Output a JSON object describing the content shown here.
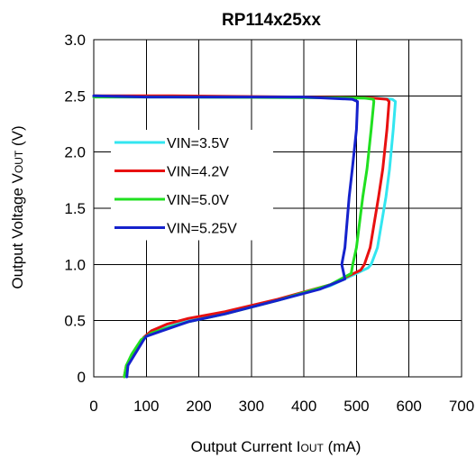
{
  "chart_data": {
    "type": "line",
    "title": "RP114x25xx",
    "xlabel": "Output Current I",
    "xlabel_sub": "OUT",
    "xlabel_unit": " (mA)",
    "ylabel": "Output Voltage V",
    "ylabel_sub": "OUT",
    "ylabel_unit": " (V)",
    "xlim": [
      0,
      700
    ],
    "ylim": [
      0,
      3.0
    ],
    "x_ticks": [
      "0",
      "100",
      "200",
      "300",
      "400",
      "500",
      "600",
      "700"
    ],
    "y_ticks": [
      "0",
      "0.5",
      "1.0",
      "1.5",
      "2.0",
      "2.5",
      "3.0"
    ],
    "grid": true,
    "legend_position": "left-middle",
    "series": [
      {
        "name": "VIN=3.5V",
        "color": "#33e6f0",
        "points": [
          [
            0,
            2.49
          ],
          [
            150,
            2.49
          ],
          [
            400,
            2.485
          ],
          [
            540,
            2.48
          ],
          [
            568,
            2.47
          ],
          [
            574,
            2.45
          ],
          [
            570,
            2.2
          ],
          [
            563,
            1.85
          ],
          [
            556,
            1.6
          ],
          [
            540,
            1.15
          ],
          [
            528,
            1.0
          ],
          [
            522,
            0.97
          ],
          [
            450,
            0.81
          ],
          [
            350,
            0.68
          ],
          [
            250,
            0.57
          ],
          [
            180,
            0.5
          ],
          [
            130,
            0.43
          ],
          [
            110,
            0.41
          ],
          [
            95,
            0.35
          ],
          [
            75,
            0.2
          ],
          [
            65,
            0.1
          ],
          [
            62,
            0.0
          ]
        ]
      },
      {
        "name": "VIN=4.2V",
        "color": "#e81010",
        "points": [
          [
            0,
            2.5
          ],
          [
            150,
            2.5
          ],
          [
            400,
            2.49
          ],
          [
            530,
            2.48
          ],
          [
            558,
            2.47
          ],
          [
            562,
            2.45
          ],
          [
            558,
            2.2
          ],
          [
            550,
            1.85
          ],
          [
            542,
            1.6
          ],
          [
            526,
            1.15
          ],
          [
            515,
            1.0
          ],
          [
            508,
            0.95
          ],
          [
            450,
            0.82
          ],
          [
            350,
            0.69
          ],
          [
            250,
            0.58
          ],
          [
            180,
            0.52
          ],
          [
            140,
            0.47
          ],
          [
            110,
            0.41
          ],
          [
            95,
            0.35
          ],
          [
            75,
            0.2
          ],
          [
            62,
            0.1
          ],
          [
            58,
            0.0
          ]
        ]
      },
      {
        "name": "VIN=5.0V",
        "color": "#20e020",
        "points": [
          [
            0,
            2.49
          ],
          [
            150,
            2.49
          ],
          [
            400,
            2.485
          ],
          [
            515,
            2.48
          ],
          [
            532,
            2.47
          ],
          [
            533,
            2.45
          ],
          [
            528,
            2.2
          ],
          [
            520,
            1.85
          ],
          [
            512,
            1.6
          ],
          [
            500,
            1.15
          ],
          [
            493,
            1.0
          ],
          [
            490,
            0.92
          ],
          [
            450,
            0.82
          ],
          [
            350,
            0.68
          ],
          [
            250,
            0.56
          ],
          [
            180,
            0.49
          ],
          [
            130,
            0.42
          ],
          [
            110,
            0.39
          ],
          [
            90,
            0.33
          ],
          [
            72,
            0.2
          ],
          [
            62,
            0.1
          ],
          [
            58,
            0.0
          ]
        ]
      },
      {
        "name": "VIN=5.25V",
        "color": "#1522cc",
        "points": [
          [
            0,
            2.5
          ],
          [
            100,
            2.49
          ],
          [
            400,
            2.49
          ],
          [
            492,
            2.47
          ],
          [
            502,
            2.45
          ],
          [
            500,
            2.2
          ],
          [
            492,
            1.85
          ],
          [
            486,
            1.6
          ],
          [
            478,
            1.15
          ],
          [
            472,
            1.0
          ],
          [
            478,
            0.87
          ],
          [
            430,
            0.78
          ],
          [
            350,
            0.68
          ],
          [
            250,
            0.56
          ],
          [
            180,
            0.49
          ],
          [
            130,
            0.41
          ],
          [
            100,
            0.36
          ],
          [
            95,
            0.33
          ],
          [
            78,
            0.2
          ],
          [
            65,
            0.1
          ],
          [
            63,
            0.0
          ]
        ]
      }
    ]
  }
}
